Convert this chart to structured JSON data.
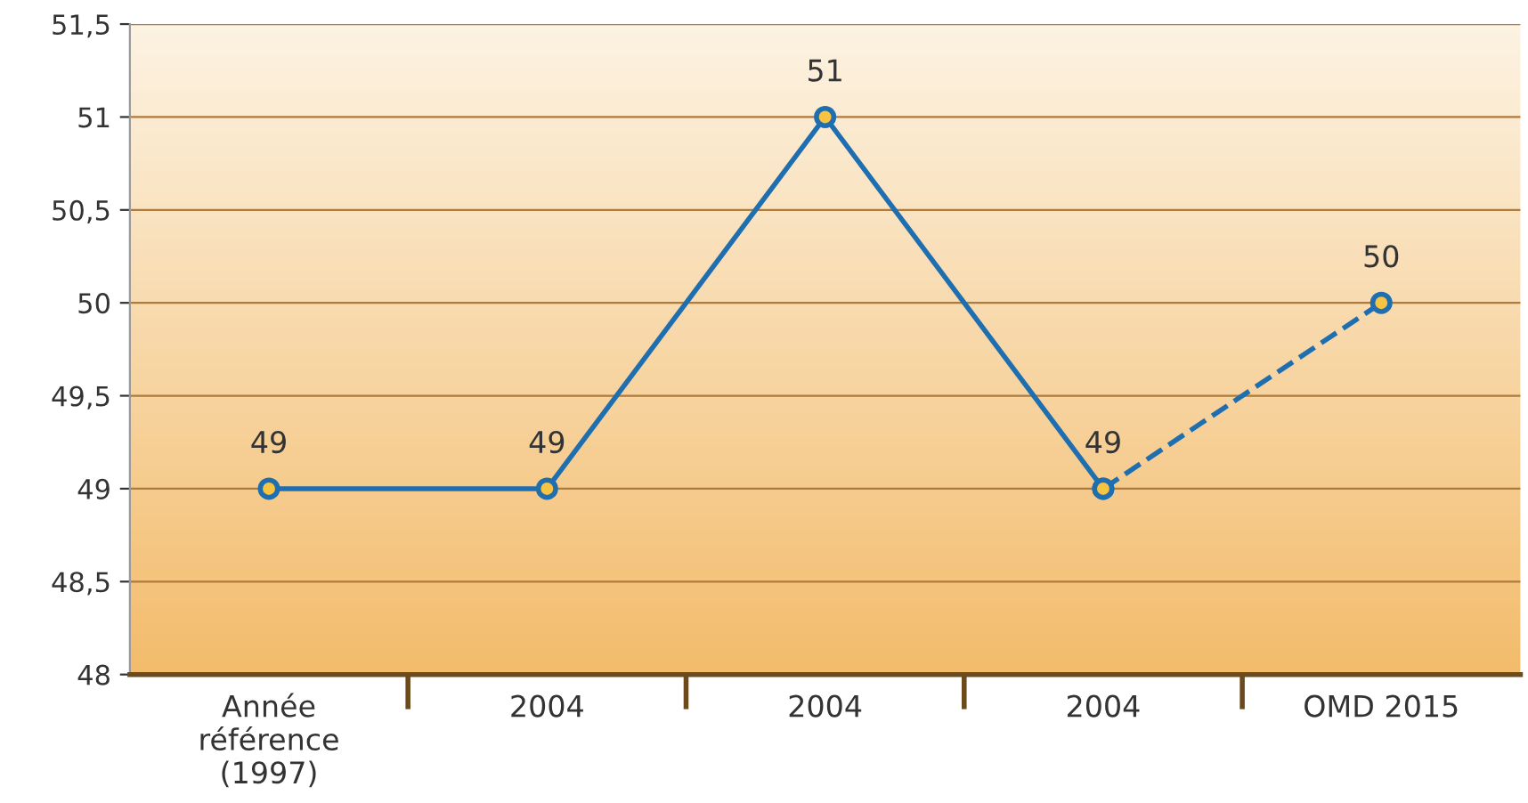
{
  "chart_data": {
    "type": "line",
    "categories": [
      "Année\nréférence\n(1997)",
      "2004",
      "2004",
      "2004",
      "OMD 2015"
    ],
    "series": [
      {
        "color": "#1f6fb0",
        "values": [
          49,
          49,
          51,
          49,
          null
        ],
        "value_labels": [
          "49",
          "49",
          "51",
          "49",
          null
        ],
        "line_style": "solid"
      },
      {
        "color": "#1f6fb0",
        "values": [
          null,
          null,
          null,
          49,
          50
        ],
        "value_labels": [
          null,
          null,
          null,
          null,
          "50"
        ],
        "line_style": "dashed"
      }
    ],
    "ylim": [
      48,
      51.5
    ],
    "yticks": [
      48,
      {
        "value": 48.5,
        "label": "48,5"
      },
      49,
      {
        "value": 49.5,
        "label": "49,5"
      },
      50,
      {
        "value": 50.5,
        "label": "50,5"
      },
      51,
      {
        "value": 51.5,
        "label": "51,5"
      }
    ],
    "grid": "y",
    "marker": "circle",
    "legend": false
  }
}
